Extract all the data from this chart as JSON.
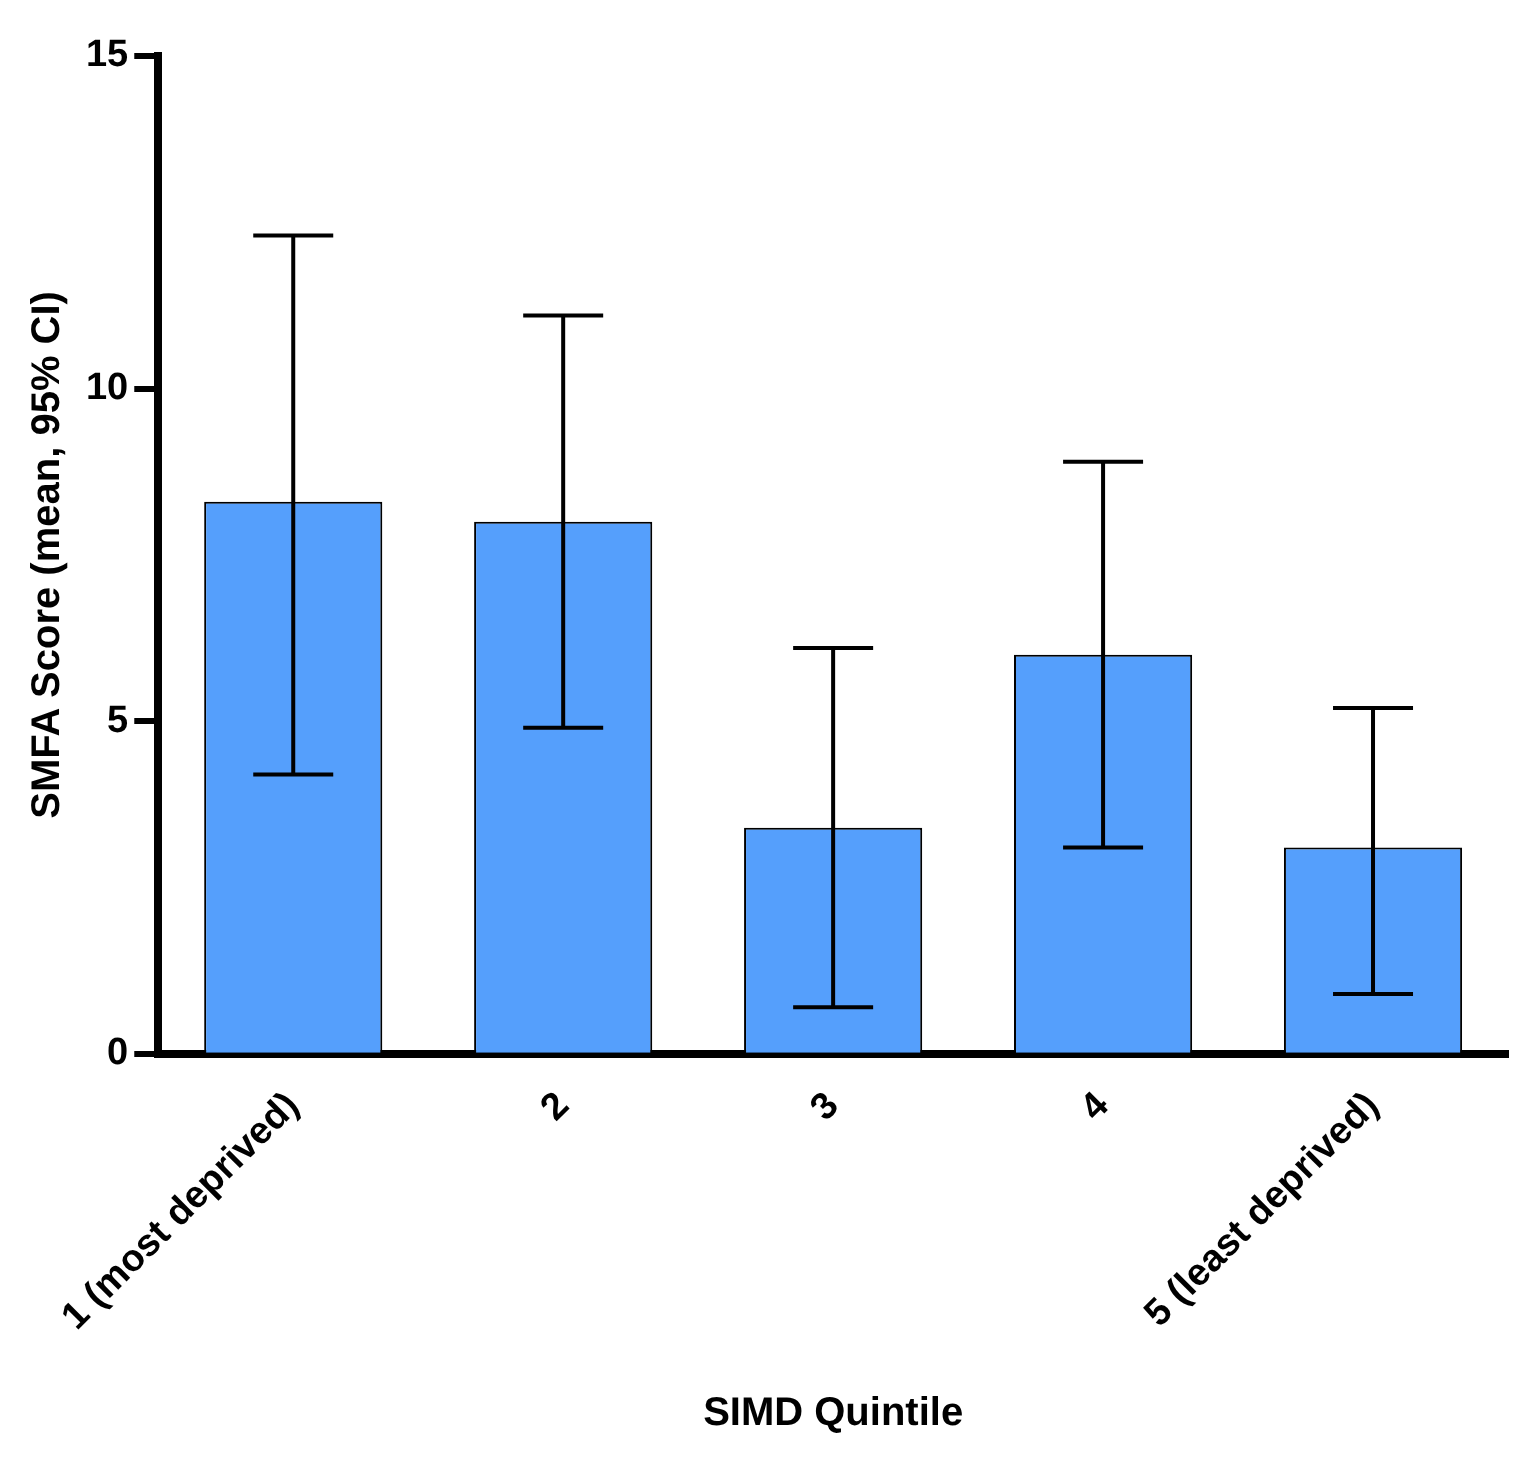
{
  "chart_data": {
    "type": "bar",
    "xlabel": "SIMD Quintile",
    "ylabel": "SMFA Score (mean, 95% CI)",
    "categories": [
      "1 (most deprived)",
      "2",
      "3",
      "4",
      "5 (least deprived)"
    ],
    "values": [
      8.3,
      8.0,
      3.4,
      6.0,
      3.1
    ],
    "errors": [
      [
        4.2,
        12.3
      ],
      [
        4.9,
        11.1
      ],
      [
        0.7,
        6.1
      ],
      [
        3.1,
        8.9
      ],
      [
        0.9,
        5.2
      ]
    ],
    "color": "#559ffc",
    "ylim": [
      0,
      15
    ],
    "yticks": [
      0,
      5,
      10,
      15
    ],
    "grid": false,
    "legend": false
  }
}
